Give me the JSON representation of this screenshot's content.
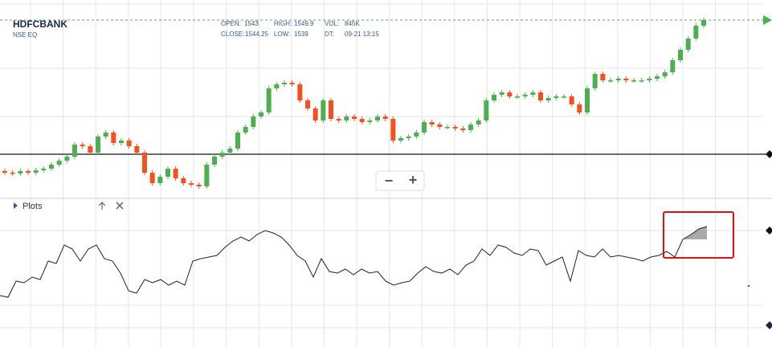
{
  "header": {
    "symbol": "HDFCBANK",
    "exchange": "NSE EQ",
    "quote": [
      {
        "label": "OPEN:",
        "value": 1543
      },
      {
        "label": "HIGH:",
        "value": 1549.9
      },
      {
        "label": "VOL:",
        "value": "845K"
      },
      {
        "label": "CLOSE:",
        "value": 1544.25
      },
      {
        "label": "LOW:",
        "value": 1539
      },
      {
        "label": "DT:",
        "value": "09-21 13:15"
      }
    ]
  },
  "zoom": {
    "out": "−",
    "in": "+"
  },
  "panel": {
    "title": "Plots"
  },
  "chart_data": [
    {
      "type": "candlestick",
      "up_color": "#4caf50",
      "down_color": "#f4511e",
      "ylim": [
        0,
        245
      ],
      "open": [
        37,
        35,
        34,
        37,
        35,
        38,
        40,
        45,
        50,
        55,
        70,
        68,
        60,
        80,
        85,
        72,
        75,
        68,
        60,
        35,
        22,
        30,
        40,
        28,
        22,
        20,
        18,
        45,
        55,
        60,
        65,
        85,
        92,
        105,
        110,
        140,
        145,
        147,
        145,
        125,
        115,
        100,
        125,
        102,
        100,
        105,
        102,
        98,
        100,
        105,
        102,
        75,
        78,
        80,
        85,
        98,
        95,
        92,
        92,
        90,
        88,
        95,
        100,
        125,
        132,
        135,
        130,
        130,
        132,
        135,
        125,
        128,
        130,
        130,
        120,
        110,
        140,
        158,
        150,
        150,
        152,
        150,
        150,
        150,
        152,
        155,
        160,
        175,
        188,
        202,
        218
      ],
      "high": [
        40,
        38,
        40,
        40,
        41,
        43,
        48,
        53,
        58,
        73,
        73,
        71,
        83,
        88,
        88,
        78,
        78,
        71,
        63,
        38,
        33,
        43,
        43,
        31,
        25,
        23,
        48,
        58,
        63,
        68,
        88,
        95,
        108,
        113,
        143,
        148,
        150,
        150,
        148,
        128,
        118,
        128,
        128,
        105,
        108,
        108,
        105,
        103,
        108,
        108,
        105,
        81,
        83,
        88,
        101,
        101,
        98,
        95,
        95,
        93,
        98,
        103,
        128,
        135,
        138,
        138,
        133,
        135,
        138,
        138,
        131,
        133,
        133,
        133,
        123,
        143,
        161,
        161,
        153,
        155,
        155,
        153,
        153,
        155,
        158,
        163,
        178,
        191,
        205,
        221,
        228
      ],
      "low": [
        32,
        31,
        31,
        32,
        32,
        35,
        37,
        42,
        47,
        52,
        65,
        57,
        57,
        77,
        69,
        69,
        65,
        57,
        32,
        19,
        19,
        27,
        25,
        19,
        17,
        15,
        15,
        42,
        52,
        57,
        62,
        82,
        89,
        102,
        107,
        137,
        142,
        142,
        122,
        112,
        97,
        97,
        99,
        97,
        97,
        99,
        95,
        95,
        97,
        99,
        72,
        72,
        75,
        77,
        82,
        92,
        89,
        89,
        87,
        85,
        85,
        92,
        97,
        122,
        129,
        127,
        127,
        127,
        129,
        122,
        122,
        125,
        127,
        117,
        107,
        107,
        137,
        147,
        147,
        147,
        147,
        147,
        147,
        147,
        149,
        152,
        157,
        172,
        185,
        199,
        215
      ],
      "close": [
        35,
        34,
        37,
        35,
        38,
        40,
        45,
        50,
        55,
        70,
        68,
        60,
        80,
        85,
        72,
        75,
        68,
        60,
        35,
        22,
        30,
        40,
        28,
        22,
        20,
        18,
        45,
        55,
        60,
        65,
        85,
        92,
        105,
        110,
        140,
        145,
        147,
        145,
        125,
        115,
        100,
        125,
        102,
        100,
        105,
        102,
        98,
        100,
        105,
        102,
        75,
        78,
        80,
        85,
        98,
        95,
        92,
        92,
        90,
        88,
        95,
        100,
        125,
        132,
        135,
        130,
        130,
        132,
        135,
        125,
        128,
        130,
        130,
        120,
        110,
        140,
        158,
        150,
        150,
        152,
        150,
        150,
        150,
        152,
        155,
        160,
        175,
        188,
        202,
        218,
        225
      ]
    },
    {
      "type": "line",
      "color": "#222222",
      "ylim": [
        0,
        170
      ],
      "values": [
        62,
        60,
        80,
        78,
        85,
        82,
        105,
        102,
        125,
        120,
        105,
        120,
        125,
        108,
        105,
        90,
        68,
        65,
        82,
        78,
        82,
        75,
        80,
        75,
        105,
        108,
        110,
        112,
        122,
        130,
        135,
        130,
        138,
        143,
        140,
        135,
        125,
        112,
        105,
        85,
        108,
        92,
        90,
        95,
        88,
        95,
        90,
        92,
        80,
        75,
        78,
        80,
        90,
        98,
        92,
        90,
        95,
        88,
        100,
        105,
        120,
        112,
        125,
        122,
        115,
        112,
        120,
        118,
        100,
        105,
        110,
        80,
        118,
        112,
        110,
        120,
        110,
        112,
        110,
        108,
        105,
        110,
        112,
        117,
        110,
        132,
        138,
        145,
        148
      ]
    }
  ]
}
